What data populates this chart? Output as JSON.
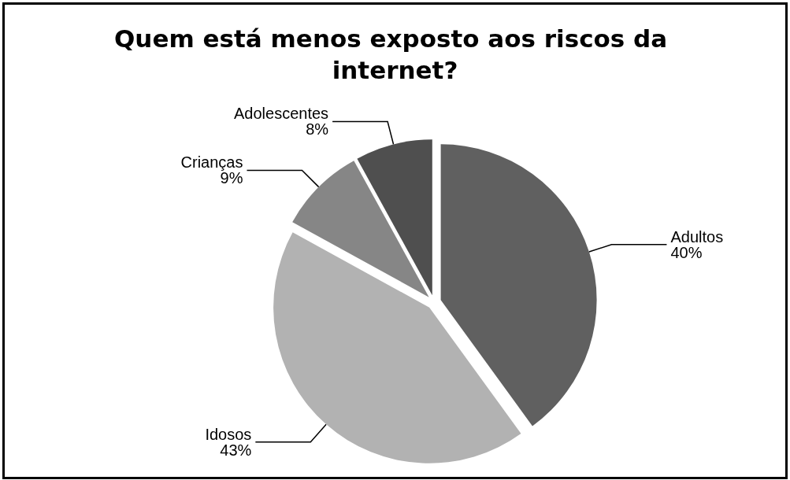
{
  "chart_data": {
    "type": "pie",
    "title": "Quem está menos exposto aos riscos da internet?",
    "categories": [
      "Adultos",
      "Idosos",
      "Crianças",
      "Adolescentes"
    ],
    "values": [
      40,
      43,
      9,
      8
    ],
    "value_labels": [
      "40%",
      "43%",
      "9%",
      "8%"
    ],
    "colors": [
      "#606060",
      "#b2b2b2",
      "#868686",
      "#4f4f4f"
    ],
    "legend": false
  }
}
